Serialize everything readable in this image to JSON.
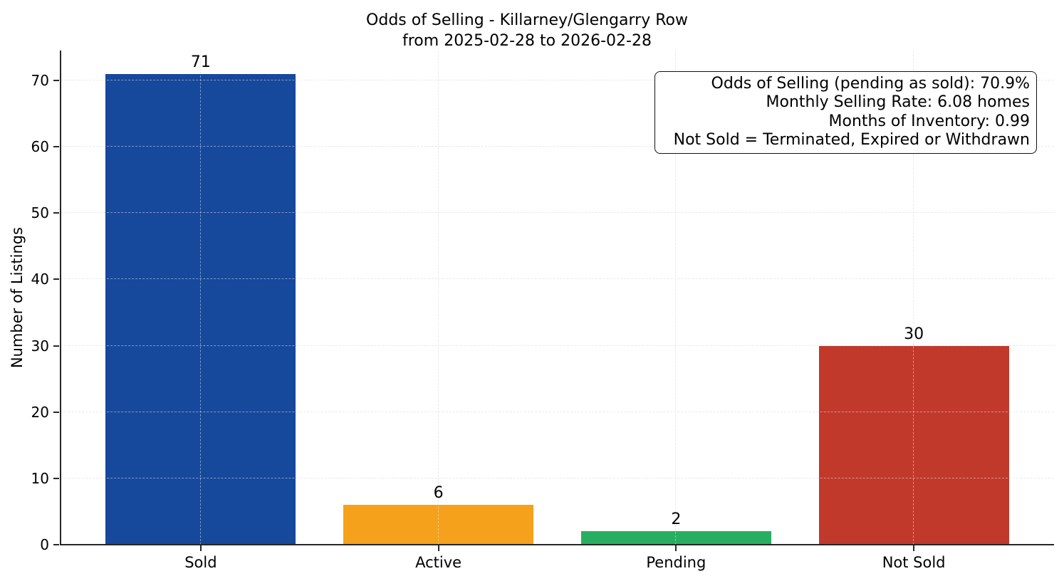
{
  "figure": {
    "title_line1": "Odds of Selling - Killarney/Glengarry Row",
    "title_line2": "from 2025-02-28 to 2026-02-28"
  },
  "annotation": {
    "lines": [
      "Odds of Selling (pending as sold): 70.9%",
      "Monthly Selling Rate: 6.08 homes",
      "Months of Inventory: 0.99",
      "Not Sold = Terminated, Expired or Withdrawn"
    ]
  },
  "chart_data": {
    "type": "bar",
    "title": "Odds of Selling - Killarney/Glengarry Row\nfrom 2025-02-28 to 2026-02-28",
    "categories": [
      "Sold",
      "Active",
      "Pending",
      "Not Sold"
    ],
    "values": [
      71,
      6,
      2,
      30
    ],
    "bar_colors": [
      "#16489c",
      "#f5a11b",
      "#27ae60",
      "#c0392b"
    ],
    "xlabel": "",
    "ylabel": "Number of Listings",
    "ylim": [
      0,
      74.5
    ],
    "yticks": [
      0,
      10,
      20,
      30,
      40,
      50,
      60,
      70
    ],
    "grid": true,
    "grid_style": "dashed",
    "legend": "none",
    "bar_value_labels": [
      71,
      6,
      2,
      30
    ],
    "stats": {
      "odds_of_selling_pending_as_sold_pct": 70.9,
      "monthly_selling_rate_homes": 6.08,
      "months_of_inventory": 0.99,
      "not_sold_definition": "Terminated, Expired or Withdrawn"
    }
  },
  "colors": {
    "axis": "#262626",
    "grid": "#d9d9d9",
    "text": "#000000",
    "background": "#ffffff"
  }
}
